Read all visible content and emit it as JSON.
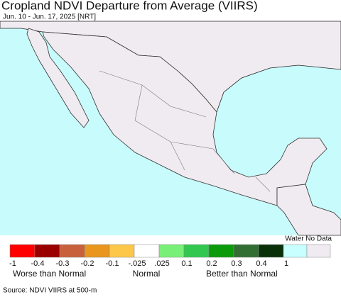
{
  "header": {
    "title": "Cropland NDVI Departure from Average (VIIRS)",
    "subtitle": "Jun. 10 - Jun. 17, 2025 [NRT]"
  },
  "legend": {
    "colors": [
      "#ff0000",
      "#9b0000",
      "#c8603c",
      "#e8961e",
      "#fdc84a",
      "#ffffff",
      "#78f078",
      "#32c850",
      "#0a9a0a",
      "#326e32",
      "#0a300a",
      "#c8ffff",
      "#efebf0"
    ],
    "ticks": [
      "-1",
      "-0.4",
      "-0.3",
      "-0.2",
      "-0.1",
      "-.025",
      ".025",
      "0.1",
      "0.2",
      "0.3",
      "0.4",
      "1"
    ],
    "groups": [
      "Worse than Normal",
      "Normal",
      "Better than Normal"
    ],
    "water_nodata_label": "Water No Data"
  },
  "footer": {
    "source": "Source: NDVI VIIRS at 500-m"
  }
}
